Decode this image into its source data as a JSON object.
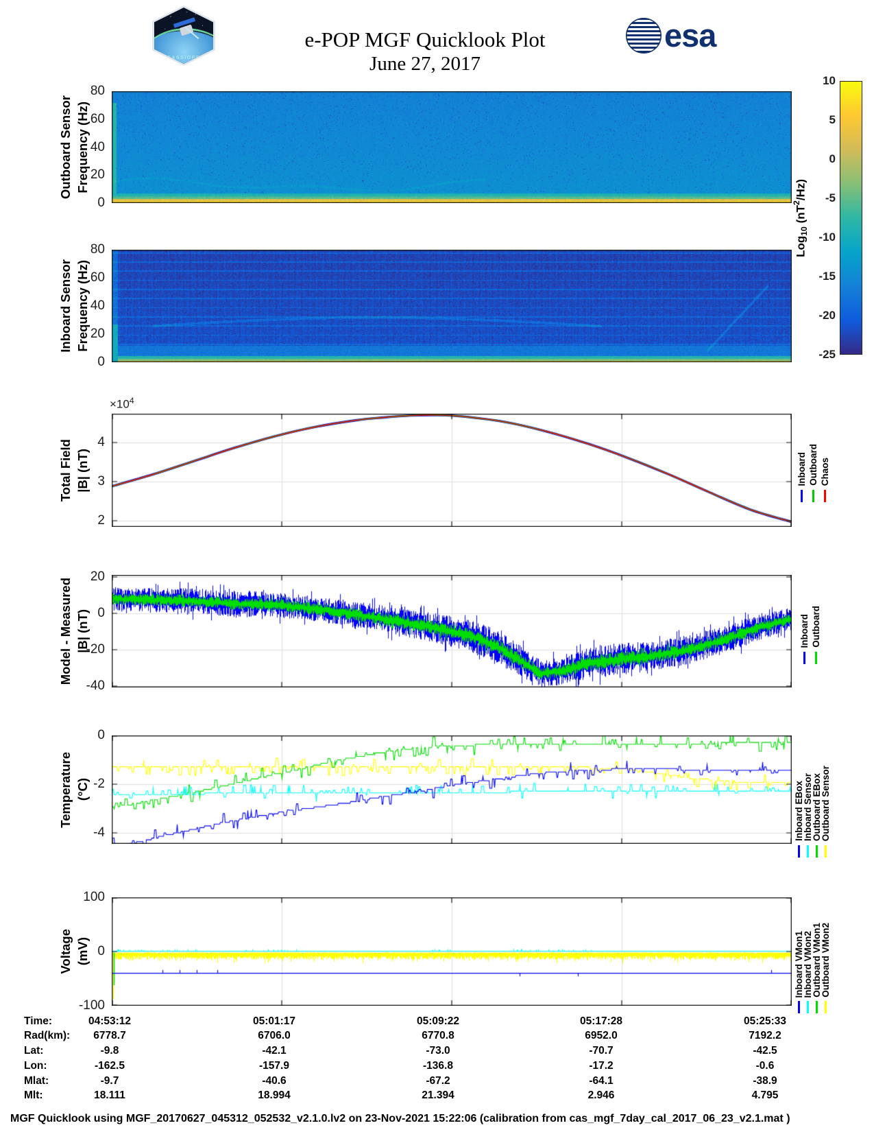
{
  "header": {
    "title": "e-POP MGF Quicklook Plot",
    "date": "June 27, 2017",
    "esa_logo_text": "esa",
    "patch_text": "CASSIOPE"
  },
  "colorbar": {
    "label_parts": {
      "prefix": "Log",
      "sub": "10",
      "mid": " (nT",
      "sup": "2",
      "suffix": "/Hz)"
    },
    "ticks": [
      "10",
      "5",
      "0",
      "-5",
      "-10",
      "-15",
      "-20",
      "-25"
    ],
    "value_range": [
      -25,
      10
    ],
    "stops": [
      "#352a87",
      "#0f5cdd",
      "#1481d6",
      "#06a4ca",
      "#2eb7a4",
      "#87bf77",
      "#d1bb59",
      "#fec832",
      "#f9fb0e"
    ]
  },
  "chart_data": [
    {
      "id": "outboard_spectrogram",
      "type": "heatmap",
      "ylabel": [
        "Outboard Sensor",
        "Frequency (Hz)"
      ],
      "yticks": [
        "80",
        "60",
        "40",
        "20",
        "0"
      ],
      "ylim": [
        0,
        80
      ],
      "base_value_top": -16.2,
      "base_value_bottom": -14.2,
      "noise": 2.6,
      "features": {
        "yellow_band_below_hz": 3.2,
        "yellow_band_value": 6,
        "green_line_hz": [
          3.2,
          4.6
        ],
        "green_line_value": -5.5,
        "left_strip_value": -8.5
      }
    },
    {
      "id": "inboard_spectrogram",
      "type": "heatmap",
      "ylabel": [
        "Inboard Sensor",
        "Frequency (Hz)"
      ],
      "yticks": [
        "80",
        "60",
        "40",
        "20",
        "0"
      ],
      "ylim": [
        0,
        80
      ],
      "base_value_top": -22.8,
      "base_value_bottom": -21.3,
      "noise": 3.0,
      "features": {
        "yellow_band_below_hz": 1.2,
        "yellow_band_value": 6.5,
        "green_band_hz": [
          1.2,
          2.5
        ],
        "teal_band_hz": [
          2.5,
          4.8
        ],
        "light_blue_below_hz": 12,
        "light_blue_value": -17.5,
        "stripe_spacing_hz": 6.5,
        "left_strip_value": -10.5
      }
    },
    {
      "id": "total_field",
      "type": "line",
      "ylabel": [
        "Total Field",
        "|B| (nT)"
      ],
      "exp_parts": {
        "prefix": "×10",
        "sup": "4"
      },
      "yticks": [
        "4",
        "3",
        "2"
      ],
      "ylim_1e4": [
        1.84,
        4.74
      ],
      "series": [
        {
          "name": "Inboard",
          "color": "#0000ff"
        },
        {
          "name": "Outboard",
          "color": "#00cc00"
        },
        {
          "name": "Chaos",
          "color": "#ff0000"
        }
      ],
      "x": [
        0,
        0.06,
        0.12,
        0.18,
        0.24,
        0.3,
        0.36,
        0.4,
        0.44,
        0.48,
        0.52,
        0.58,
        0.64,
        0.7,
        0.76,
        0.82,
        0.88,
        0.94,
        1.0
      ],
      "values_1e4": [
        2.88,
        3.18,
        3.52,
        3.86,
        4.16,
        4.4,
        4.57,
        4.64,
        4.69,
        4.7,
        4.66,
        4.52,
        4.28,
        3.97,
        3.6,
        3.18,
        2.72,
        2.28,
        1.97
      ]
    },
    {
      "id": "model_minus_measured",
      "type": "line",
      "ylabel": [
        "Model - Measured",
        "|B| (nT)"
      ],
      "yticks": [
        "20",
        "0",
        "-20",
        "-40"
      ],
      "ylim": [
        -40.8,
        21.1
      ],
      "series": [
        {
          "name": "Inboard",
          "color": "#0000ff"
        },
        {
          "name": "Outboard",
          "color": "#00dd00"
        }
      ],
      "x": [
        0,
        0.05,
        0.1,
        0.15,
        0.18,
        0.22,
        0.26,
        0.3,
        0.34,
        0.38,
        0.42,
        0.46,
        0.5,
        0.54,
        0.57,
        0.6,
        0.63,
        0.66,
        0.7,
        0.74,
        0.78,
        0.82,
        0.86,
        0.9,
        0.95,
        1.0
      ],
      "center": [
        8,
        7.5,
        7,
        6.2,
        5,
        5.2,
        4,
        2.5,
        0.5,
        -2,
        -4.5,
        -7,
        -10,
        -14,
        -19,
        -26,
        -33,
        -32,
        -27.5,
        -25.5,
        -24,
        -22,
        -19,
        -14.5,
        -8,
        -3
      ],
      "inboard_halfwidth": [
        6.5,
        6.5,
        7,
        7,
        7.5,
        7,
        7,
        7,
        7,
        7.5,
        7.5,
        8,
        8.5,
        9,
        9,
        8.5,
        7.5,
        7.5,
        8.5,
        9,
        8.5,
        8,
        8,
        8,
        7,
        6.5
      ],
      "outboard_halfwidth": [
        3.2,
        3.2,
        3.4,
        3.2,
        3,
        3.4,
        3.4,
        3.4,
        3.4,
        3.6,
        3.8,
        3.8,
        4,
        4.2,
        4.2,
        4,
        3.6,
        3.8,
        4,
        4.2,
        4,
        3.8,
        3.6,
        3.4,
        3.2,
        3
      ]
    },
    {
      "id": "temperature",
      "type": "line",
      "ylabel": [
        "Temperature",
        "(°C)"
      ],
      "yticks": [
        "0",
        "-2",
        "-4"
      ],
      "ylim": [
        -4.45,
        0
      ],
      "series": [
        {
          "name": "Inboard EBox",
          "color": "#0000ff",
          "spike_up_bias": 0.5,
          "spike_rate": 0.08,
          "x": [
            0,
            0.02,
            0.05,
            0.08,
            0.12,
            0.16,
            0.2,
            0.25,
            0.3,
            0.35,
            0.4,
            0.45,
            0.5,
            0.55,
            0.6,
            0.65,
            0.7,
            0.75,
            0.8,
            0.85,
            0.9,
            0.95,
            1.0
          ],
          "values": [
            -4.55,
            -4.5,
            -4.3,
            -4.1,
            -3.85,
            -3.6,
            -3.4,
            -3.15,
            -2.95,
            -2.75,
            -2.5,
            -2.3,
            -2.05,
            -1.85,
            -1.65,
            -1.5,
            -1.42,
            -1.38,
            -1.38,
            -1.4,
            -1.42,
            -1.45,
            -1.45
          ]
        },
        {
          "name": "Inboard Sensor",
          "color": "#00ffff",
          "spike_up_bias": 0.85,
          "spike_rate": 0.1,
          "x": [
            0,
            0.1,
            0.2,
            0.3,
            0.4,
            0.5,
            0.6,
            0.7,
            0.8,
            0.9,
            1.0
          ],
          "values": [
            -2.42,
            -2.4,
            -2.38,
            -2.36,
            -2.35,
            -2.33,
            -2.32,
            -2.3,
            -2.3,
            -2.28,
            -2.28
          ]
        },
        {
          "name": "Outboard EBox",
          "color": "#00dd00",
          "spike_up_bias": 0.5,
          "spike_rate": 0.12,
          "x": [
            0,
            0.03,
            0.06,
            0.1,
            0.14,
            0.18,
            0.22,
            0.26,
            0.3,
            0.34,
            0.38,
            0.42,
            0.46,
            0.5,
            0.55,
            0.6,
            0.7,
            0.8,
            0.9,
            1.0
          ],
          "values": [
            -2.95,
            -2.82,
            -2.65,
            -2.45,
            -2.22,
            -1.98,
            -1.72,
            -1.48,
            -1.22,
            -0.98,
            -0.78,
            -0.6,
            -0.48,
            -0.42,
            -0.38,
            -0.36,
            -0.35,
            -0.33,
            -0.32,
            -0.3
          ]
        },
        {
          "name": "Outboard Sensor",
          "color": "#ffff00",
          "spike_up_bias": 0.25,
          "spike_rate": 0.16,
          "x": [
            0,
            0.1,
            0.2,
            0.3,
            0.4,
            0.5,
            0.6,
            0.7,
            0.75,
            0.8,
            0.85,
            0.9,
            0.95,
            1.0
          ],
          "values": [
            -1.32,
            -1.3,
            -1.3,
            -1.28,
            -1.28,
            -1.3,
            -1.3,
            -1.32,
            -1.35,
            -1.55,
            -1.75,
            -1.88,
            -1.92,
            -1.95
          ]
        }
      ]
    },
    {
      "id": "voltage",
      "type": "line",
      "ylabel": [
        "Voltage",
        "(mV)"
      ],
      "yticks": [
        "100",
        "0",
        "-100"
      ],
      "ylim": [
        -100,
        100
      ],
      "x_axis_ticks": [
        "04:53:12",
        "05:01:17",
        "05:09:22",
        "05:17:28",
        "05:25:33"
      ],
      "series": [
        {
          "name": "Inboard VMon1",
          "color": "#0000ff",
          "base": -40,
          "spikes_up": [
            0.075,
            0.1,
            0.125,
            0.155,
            0.97
          ],
          "spikes_down": [
            0.6,
            0.685
          ]
        },
        {
          "name": "Inboard VMon2",
          "color": "#00ffff",
          "base": 0.8,
          "spike_top": 4
        },
        {
          "name": "Outboard VMon1",
          "color": "#00dd00",
          "base": -4.5,
          "halfwidth": 1.8
        },
        {
          "name": "Outboard VMon2",
          "color": "#ffff00",
          "base": -8,
          "halfwidth": 7,
          "dip_extra": 8,
          "transient": {
            "x": 0.003,
            "from": -2,
            "to": -88
          }
        }
      ]
    }
  ],
  "table": {
    "rows": [
      {
        "label": "Time:",
        "values": [
          "04:53:12",
          "05:01:17",
          "05:09:22",
          "05:17:28",
          "05:25:33"
        ]
      },
      {
        "label": "Rad(km):",
        "values": [
          "6778.7",
          "6706.0",
          "6770.8",
          "6952.0",
          "7192.2"
        ]
      },
      {
        "label": "Lat:",
        "values": [
          "-9.8",
          "-42.1",
          "-73.0",
          "-70.7",
          "-42.5"
        ]
      },
      {
        "label": "Lon:",
        "values": [
          "-162.5",
          "-157.9",
          "-136.8",
          "-17.2",
          "-0.6"
        ]
      },
      {
        "label": "Mlat:",
        "values": [
          "-9.7",
          "-40.6",
          "-67.2",
          "-64.1",
          "-38.9"
        ]
      },
      {
        "label": "Mlt:",
        "values": [
          "18.111",
          "18.994",
          "21.394",
          "2.946",
          "4.795"
        ]
      }
    ]
  },
  "footer": "MGF Quicklook using MGF_20170627_045312_052532_v2.1.0.lv2 on 23-Nov-2021 15:22:06 (calibration from cas_mgf_7day_cal_2017_06_23_v2.1.mat )"
}
